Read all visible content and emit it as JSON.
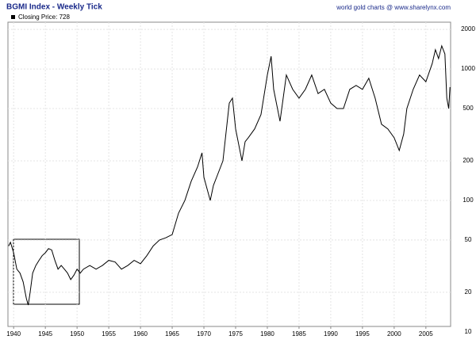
{
  "chart_data": {
    "type": "line",
    "title": "BGMI Index - Weekly Tick",
    "subtitle": "world gold charts @ www.sharelynx.com",
    "legend": "Closing Price: 728",
    "log_scale": true,
    "grid": true,
    "series": [
      {
        "name": "Closing Price",
        "color": "#000000",
        "x": [
          1939.2,
          1939.5,
          1940,
          1940.5,
          1941,
          1941.5,
          1942,
          1942.3,
          1942.6,
          1943,
          1943.5,
          1944,
          1944.5,
          1945,
          1945.5,
          1946,
          1946.5,
          1947,
          1947.5,
          1948,
          1948.5,
          1949,
          1949.5,
          1950,
          1950.5,
          1951,
          1952,
          1953,
          1954,
          1955,
          1956,
          1957,
          1958,
          1959,
          1960,
          1961,
          1962,
          1963,
          1964,
          1965,
          1966,
          1967,
          1968,
          1969,
          1969.7,
          1970,
          1971,
          1971.5,
          1972,
          1973,
          1974,
          1974.5,
          1975,
          1976,
          1976.5,
          1977,
          1978,
          1979,
          1980,
          1980.6,
          1981,
          1982,
          1983,
          1984,
          1985,
          1986,
          1987,
          1988,
          1989,
          1990,
          1991,
          1992,
          1993,
          1994,
          1995,
          1996,
          1997,
          1998,
          1999,
          2000,
          2000.8,
          2001.5,
          2002,
          2003,
          2004,
          2005,
          2006,
          2006.5,
          2007,
          2007.5,
          2008,
          2008.3,
          2008.6,
          2008.8
        ],
        "values": [
          45,
          48,
          40,
          30,
          28,
          24,
          18,
          16,
          20,
          28,
          32,
          35,
          38,
          40,
          43,
          42,
          35,
          30,
          32,
          30,
          28,
          25,
          27,
          30,
          28,
          30,
          32,
          30,
          32,
          35,
          34,
          30,
          32,
          35,
          33,
          38,
          45,
          50,
          52,
          55,
          80,
          100,
          140,
          180,
          230,
          150,
          100,
          130,
          150,
          200,
          550,
          600,
          350,
          200,
          280,
          300,
          350,
          450,
          900,
          1250,
          700,
          400,
          900,
          700,
          600,
          700,
          900,
          650,
          700,
          550,
          500,
          500,
          700,
          750,
          700,
          850,
          600,
          380,
          350,
          300,
          240,
          320,
          500,
          700,
          900,
          800,
          1100,
          1400,
          1200,
          1500,
          1300,
          600,
          500,
          728
        ]
      }
    ],
    "xlim": [
      1939.1,
      2008.9
    ],
    "xticks": [
      1940,
      1945,
      1950,
      1955,
      1960,
      1965,
      1970,
      1975,
      1980,
      1985,
      1990,
      1995,
      2000,
      2005
    ],
    "ylim": [
      11,
      2270
    ],
    "yticks": [
      10,
      20,
      50,
      100,
      200,
      500,
      1000,
      2000
    ]
  }
}
